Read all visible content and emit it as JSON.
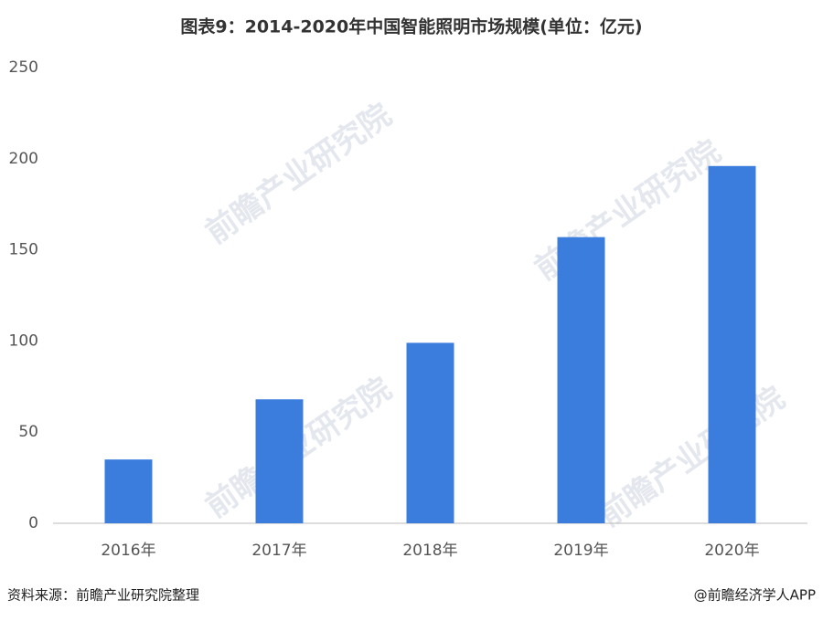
{
  "chart_data": {
    "type": "bar",
    "title": "图表9：2014-2020年中国智能照明市场规模(单位：亿元)",
    "categories": [
      "2016年",
      "2017年",
      "2018年",
      "2019年",
      "2020年"
    ],
    "values": [
      35,
      68,
      99,
      157,
      196
    ],
    "color": "#3b7ddd",
    "ylim": [
      0,
      250
    ],
    "yticks": [
      0,
      50,
      100,
      150,
      200,
      250
    ],
    "grid": false,
    "source": "资料来源：前瞻产业研究院整理",
    "credit": "@前瞻经济学人APP",
    "watermark": "前瞻产业研究院"
  }
}
